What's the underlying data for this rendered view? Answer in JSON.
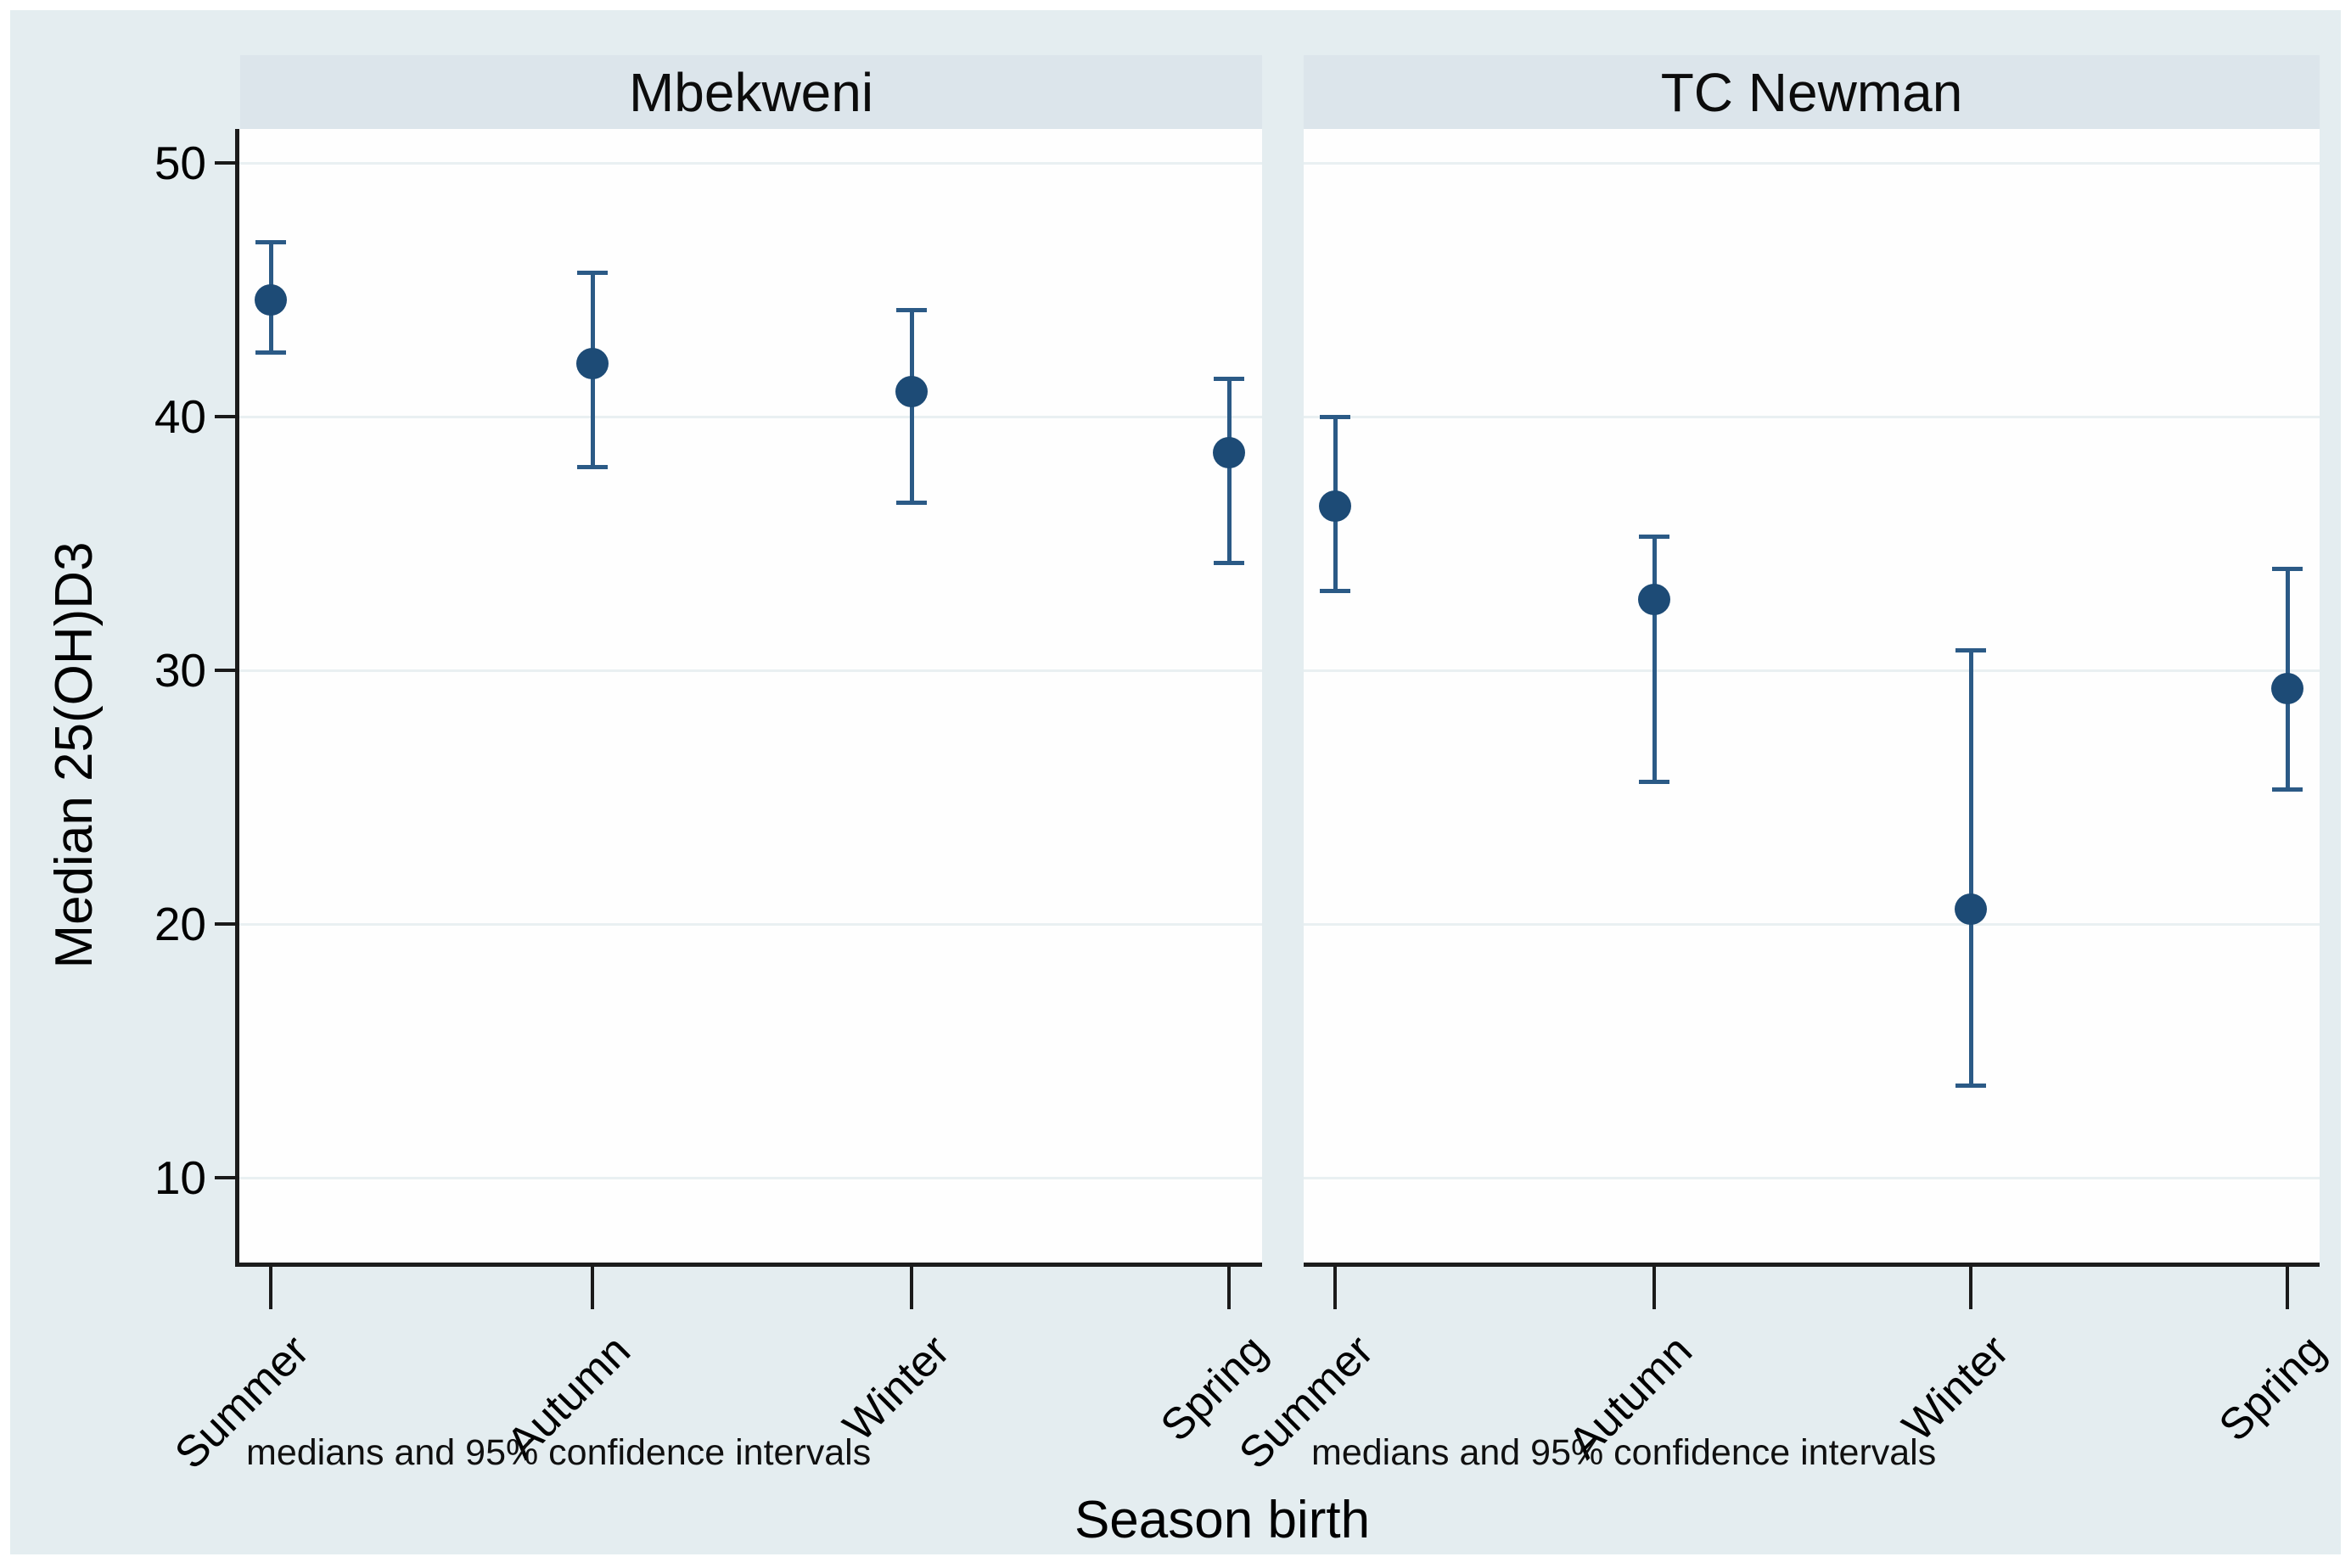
{
  "chart_data": {
    "type": "scatter",
    "subtype": "point-estimates-with-95ci",
    "ylabel": "Median 25(OH)D3",
    "xlabel": "Season birth",
    "note": "medians and 95% confidence intervals",
    "categories": [
      "Summer",
      "Autumn",
      "Winter",
      "Spring"
    ],
    "yticks": [
      50,
      40,
      30,
      20,
      10
    ],
    "ylim": [
      6.6,
      51.3
    ],
    "grid": true,
    "legend": "none",
    "marker_color": "#1d4b76",
    "errorbar_color": "#2b5a86",
    "panels": [
      {
        "title": "Mbekweni",
        "points": [
          {
            "category": "Summer",
            "median": 44.6,
            "ci_low": 42.5,
            "ci_high": 46.9
          },
          {
            "category": "Autumn",
            "median": 42.1,
            "ci_low": 38.0,
            "ci_high": 45.7
          },
          {
            "category": "Winter",
            "median": 41.0,
            "ci_low": 36.6,
            "ci_high": 44.2
          },
          {
            "category": "Spring",
            "median": 38.6,
            "ci_low": 34.2,
            "ci_high": 41.5
          }
        ]
      },
      {
        "title": "TC Newman",
        "points": [
          {
            "category": "Summer",
            "median": 36.5,
            "ci_low": 33.1,
            "ci_high": 40.0
          },
          {
            "category": "Autumn",
            "median": 32.8,
            "ci_low": 25.6,
            "ci_high": 35.3
          },
          {
            "category": "Winter",
            "median": 20.6,
            "ci_low": 13.6,
            "ci_high": 30.8
          },
          {
            "category": "Spring",
            "median": 29.3,
            "ci_low": 25.3,
            "ci_high": 34.0
          }
        ]
      }
    ]
  }
}
